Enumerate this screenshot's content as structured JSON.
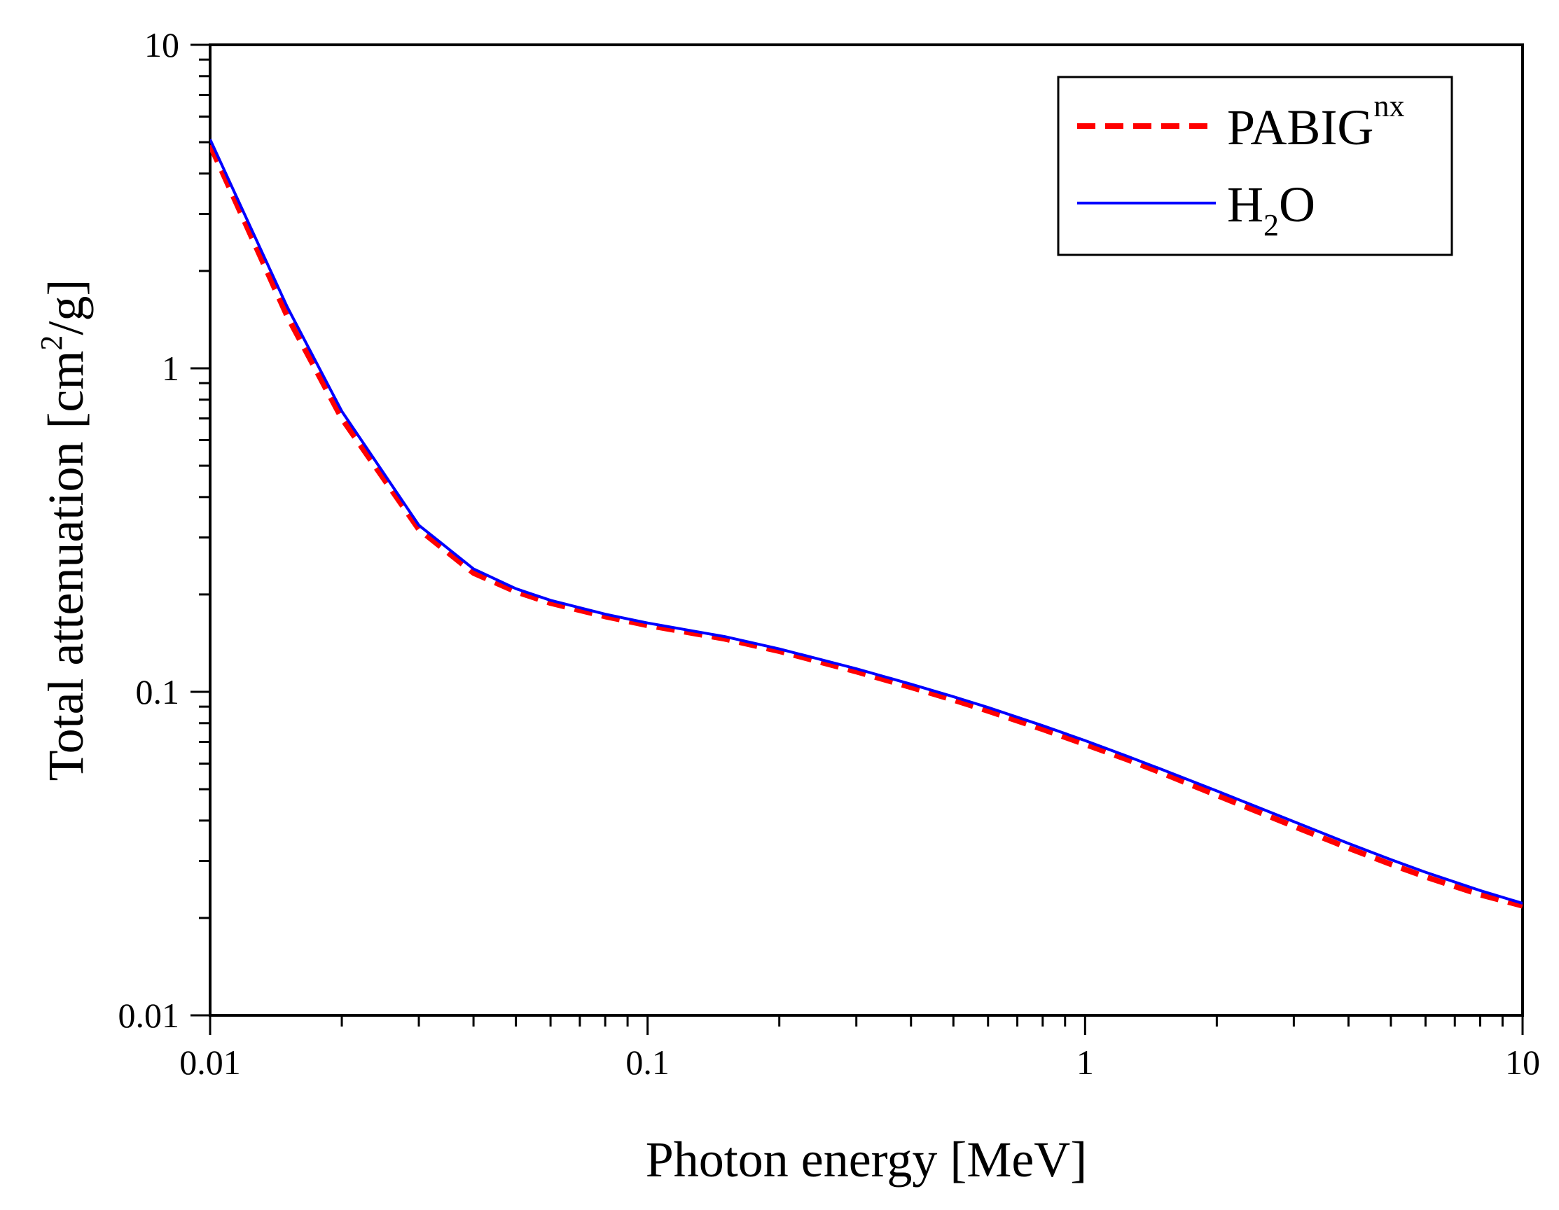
{
  "chart_data": {
    "type": "line",
    "title": "",
    "xlabel": "Photon energy [MeV]",
    "ylabel": {
      "main": "Total attenuation [cm",
      "superscript": "2",
      "end": "/g]"
    },
    "xscale": "log",
    "yscale": "log",
    "xlim": [
      0.01,
      10
    ],
    "ylim": [
      0.01,
      10
    ],
    "x_ticks": [
      {
        "value": 0.01,
        "label": "0.01"
      },
      {
        "value": 0.1,
        "label": "0.1"
      },
      {
        "value": 1,
        "label": "1"
      },
      {
        "value": 10,
        "label": "10"
      }
    ],
    "y_ticks": [
      {
        "value": 0.01,
        "label": "0.01"
      },
      {
        "value": 0.1,
        "label": "0.1"
      },
      {
        "value": 1,
        "label": "1"
      },
      {
        "value": 10,
        "label": "10"
      }
    ],
    "grid": false,
    "legend_position": "top-right",
    "series": [
      {
        "name": "PABIG",
        "name_superscript": "nx",
        "color": "#ff0000",
        "style": "dashed",
        "x": [
          0.01,
          0.015,
          0.02,
          0.03,
          0.04,
          0.05,
          0.06,
          0.08,
          0.1,
          0.15,
          0.2,
          0.3,
          0.4,
          0.5,
          0.6,
          0.8,
          1,
          1.25,
          1.5,
          2,
          3,
          4,
          5,
          6,
          8,
          10
        ],
        "y": [
          4.9,
          1.45,
          0.7,
          0.318,
          0.233,
          0.204,
          0.188,
          0.171,
          0.1605,
          0.1458,
          0.1335,
          0.1155,
          0.1033,
          0.0944,
          0.0873,
          0.0766,
          0.0688,
          0.0617,
          0.0561,
          0.0479,
          0.0384,
          0.0329,
          0.0293,
          0.0268,
          0.0236,
          0.0218
        ]
      },
      {
        "name": "H",
        "name_subscript": "2",
        "name_end": "O",
        "color": "#0000ff",
        "style": "solid",
        "x": [
          0.01,
          0.015,
          0.02,
          0.03,
          0.04,
          0.05,
          0.06,
          0.08,
          0.1,
          0.15,
          0.2,
          0.3,
          0.4,
          0.5,
          0.6,
          0.8,
          1,
          1.25,
          1.5,
          2,
          3,
          4,
          5,
          6,
          8,
          10
        ],
        "y": [
          5.1,
          1.55,
          0.737,
          0.3274,
          0.2399,
          0.2084,
          0.1918,
          0.1738,
          0.1632,
          0.1482,
          0.1357,
          0.1179,
          0.1056,
          0.0966,
          0.0895,
          0.0786,
          0.0707,
          0.0632,
          0.0575,
          0.0494,
          0.0397,
          0.034,
          0.0303,
          0.0277,
          0.0243,
          0.0222
        ]
      }
    ]
  }
}
